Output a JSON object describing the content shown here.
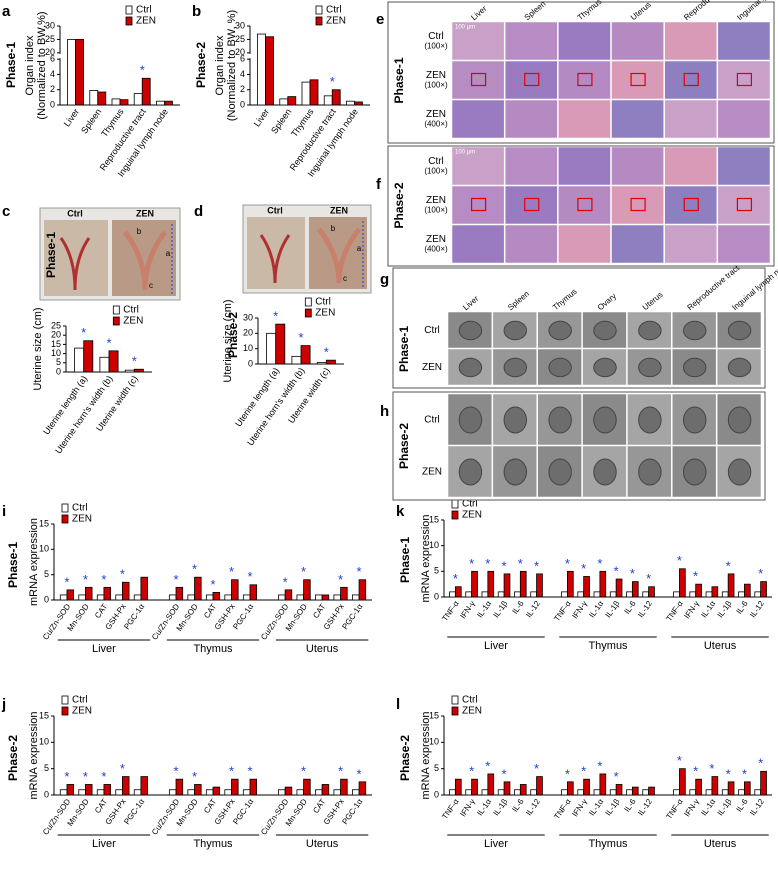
{
  "chart_data": [
    {
      "type": "bar",
      "panel": "a",
      "phase": "Phase-1",
      "ylabel": [
        "Organ index",
        "(Normalized to BW,%)"
      ],
      "categories": [
        "Liver",
        "Spleen",
        "Thymus",
        "Reproductive tract",
        "Inguinal lymph node"
      ],
      "series": [
        {
          "name": "Ctrl",
          "color": "#ffffff",
          "values": [
            25,
            1.9,
            0.8,
            1.5,
            0.5
          ]
        },
        {
          "name": "ZEN",
          "color": "#cc0000",
          "values": [
            25,
            1.7,
            0.7,
            3.5,
            0.5
          ]
        }
      ],
      "ylim": [
        0,
        30
      ],
      "axis_break": [
        6,
        20
      ],
      "yticks": [
        0,
        2,
        4,
        6,
        20,
        25,
        30
      ],
      "sig": [
        false,
        false,
        false,
        true,
        false
      ],
      "sig_label": "*",
      "legend": "upper right"
    },
    {
      "type": "bar",
      "panel": "b",
      "phase": "Phase-2",
      "ylabel": [
        "Organ index",
        "(Normalized to BW, %)"
      ],
      "categories": [
        "Liver",
        "Spleen",
        "Thymus",
        "Reproductive tract",
        "Inguinal lymph node"
      ],
      "series": [
        {
          "name": "Ctrl",
          "color": "#ffffff",
          "values": [
            27,
            0.8,
            3,
            1.2,
            0.5
          ]
        },
        {
          "name": "ZEN",
          "color": "#cc0000",
          "values": [
            26,
            1.1,
            3.3,
            2,
            0.4
          ]
        }
      ],
      "ylim": [
        0,
        30
      ],
      "axis_break": [
        6,
        20
      ],
      "yticks": [
        0,
        2,
        4,
        6,
        20,
        25,
        30
      ],
      "sig": [
        false,
        false,
        false,
        true,
        false
      ],
      "sig_label": "*",
      "legend": "upper right"
    },
    {
      "type": "bar",
      "panel": "c",
      "phase": "Phase-1",
      "ylabel": [
        "Uterine size (cm)"
      ],
      "categories": [
        "Uterine length (a)",
        "Uterine horn's width (b)",
        "Uterine width (c)"
      ],
      "series": [
        {
          "name": "Ctrl",
          "color": "#ffffff",
          "values": [
            13,
            8,
            1
          ]
        },
        {
          "name": "ZEN",
          "color": "#cc0000",
          "values": [
            17,
            11.5,
            1.5
          ]
        }
      ],
      "ylim": [
        0,
        25
      ],
      "yticks": [
        0,
        5,
        10,
        15,
        20,
        25
      ],
      "sig": [
        true,
        true,
        true
      ],
      "sig_label": "*",
      "legend": "upper right",
      "photo": {
        "left": "Ctrl",
        "right": "ZEN",
        "marks": [
          "b",
          "a",
          "c"
        ]
      }
    },
    {
      "type": "bar",
      "panel": "d",
      "phase": "Phase-2",
      "ylabel": [
        "Uterine size (cm)"
      ],
      "categories": [
        "Uterine length (a)",
        "Uterine horn's width (b)",
        "Uterine width (c)"
      ],
      "series": [
        {
          "name": "Ctrl",
          "color": "#ffffff",
          "values": [
            20,
            5,
            1
          ]
        },
        {
          "name": "ZEN",
          "color": "#cc0000",
          "values": [
            26,
            12,
            2.5
          ]
        }
      ],
      "ylim": [
        0,
        30
      ],
      "yticks": [
        0,
        10,
        20,
        30
      ],
      "sig": [
        true,
        true,
        true
      ],
      "sig_label": "*",
      "legend": "upper right",
      "photo": {
        "left": "Ctrl",
        "right": "ZEN",
        "marks": [
          "b",
          "a",
          "c"
        ]
      }
    },
    {
      "type": "bar",
      "panel": "i",
      "phase": "Phase-1",
      "ylabel": [
        "mRNA expression"
      ],
      "groups": [
        "Liver",
        "Thymus",
        "Uterus"
      ],
      "categories": [
        "Cu/Zn-SOD",
        "Mn-SOD",
        "CAT",
        "GSH-Px",
        "PGC-1α",
        "Cu/Zn-SOD",
        "Mn-SOD",
        "CAT",
        "GSH-Px",
        "PGC-1α",
        "Cu/Zn-SOD",
        "Mn-SOD",
        "CAT",
        "GSH-Px",
        "PGC-1α"
      ],
      "series": [
        {
          "name": "Ctrl",
          "color": "#ffffff",
          "values": [
            1,
            1,
            1,
            1,
            1,
            1,
            1,
            1,
            1,
            1,
            1,
            1,
            1,
            1,
            1
          ]
        },
        {
          "name": "ZEN",
          "color": "#cc0000",
          "values": [
            2,
            2.5,
            2.5,
            3.5,
            4.5,
            2.5,
            4.5,
            1.5,
            4,
            3,
            2,
            4,
            1,
            2.5,
            4
          ]
        }
      ],
      "ylim": [
        0,
        15
      ],
      "yticks": [
        0,
        5,
        10,
        15
      ],
      "sig": [
        true,
        true,
        true,
        true,
        false,
        true,
        true,
        true,
        true,
        true,
        true,
        true,
        false,
        true,
        true
      ],
      "sig_label": "*",
      "legend": "upper left"
    },
    {
      "type": "bar",
      "panel": "j",
      "phase": "Phase-2",
      "ylabel": [
        "mRNA expression"
      ],
      "groups": [
        "Liver",
        "Thymus",
        "Uterus"
      ],
      "categories": [
        "Cu/Zn-SOD",
        "Mn-SOD",
        "CAT",
        "GSH-Px",
        "PGC-1α",
        "Cu/Zn-SOD",
        "Mn-SOD",
        "CAT",
        "GSH-Px",
        "PGC-1α",
        "Cu/Zn-SOD",
        "Mn-SOD",
        "CAT",
        "GSH-Px",
        "PGC-1α"
      ],
      "series": [
        {
          "name": "Ctrl",
          "color": "#ffffff",
          "values": [
            1,
            1,
            1,
            1,
            1,
            1,
            1,
            1,
            1,
            1,
            1,
            1,
            1,
            1,
            1
          ]
        },
        {
          "name": "ZEN",
          "color": "#cc0000",
          "values": [
            2,
            2,
            2,
            3.5,
            3.5,
            3,
            2,
            1.5,
            3,
            3,
            1.5,
            3,
            2,
            3,
            2.5
          ]
        }
      ],
      "ylim": [
        0,
        15
      ],
      "yticks": [
        0,
        5,
        10,
        15
      ],
      "sig": [
        true,
        true,
        true,
        true,
        false,
        true,
        true,
        false,
        true,
        true,
        false,
        true,
        false,
        true,
        true
      ],
      "sig_label": "*",
      "legend": "upper left"
    },
    {
      "type": "bar",
      "panel": "k",
      "phase": "Phase-1",
      "ylabel": [
        "mRNA expression"
      ],
      "groups": [
        "Liver",
        "Thymus",
        "Uterus"
      ],
      "categories": [
        "TNF-α",
        "IFN-γ",
        "IL-1α",
        "IL-1β",
        "IL-6",
        "IL-12",
        "TNF-α",
        "IFN-γ",
        "IL-1α",
        "IL-1β",
        "IL-6",
        "IL-12",
        "TNF-α",
        "IFN-γ",
        "IL-1α",
        "IL-1β",
        "IL-6",
        "IL-12"
      ],
      "series": [
        {
          "name": "Ctrl",
          "color": "#ffffff",
          "values": [
            1,
            1,
            1,
            1,
            1,
            1,
            1,
            1,
            1,
            1,
            1,
            1,
            1,
            1,
            1,
            1,
            1,
            1
          ]
        },
        {
          "name": "ZEN",
          "color": "#cc0000",
          "values": [
            2,
            5,
            5,
            4.5,
            5,
            4.5,
            5,
            4,
            5,
            3.5,
            3,
            2,
            5.5,
            2.5,
            2,
            4.5,
            2.5,
            3
          ]
        }
      ],
      "ylim": [
        0,
        15
      ],
      "yticks": [
        0,
        5,
        10,
        15
      ],
      "sig": [
        true,
        true,
        true,
        true,
        true,
        true,
        true,
        true,
        true,
        true,
        true,
        true,
        true,
        true,
        false,
        true,
        false,
        true
      ],
      "sig_label": "*",
      "legend": "upper left"
    },
    {
      "type": "bar",
      "panel": "l",
      "phase": "Phase-2",
      "ylabel": [
        "mRNA expression"
      ],
      "groups": [
        "Liver",
        "Thymus",
        "Uterus"
      ],
      "categories": [
        "TNF-α",
        "IFN-γ",
        "IL-1α",
        "IL-1β",
        "IL-6",
        "IL-12",
        "TNF-α",
        "IFN-γ",
        "IL-1α",
        "IL-1β",
        "IL-6",
        "IL-12",
        "TNF-α",
        "IFN-γ",
        "IL-1α",
        "IL-1β",
        "IL-6",
        "IL-12"
      ],
      "series": [
        {
          "name": "Ctrl",
          "color": "#ffffff",
          "values": [
            1,
            1,
            1,
            1,
            1,
            1,
            1,
            1,
            1,
            1,
            1,
            1,
            1,
            1,
            1,
            1,
            1,
            1
          ]
        },
        {
          "name": "ZEN",
          "color": "#cc0000",
          "values": [
            3,
            3,
            4,
            2.5,
            2,
            3.5,
            2.5,
            3,
            4,
            2,
            1.5,
            1.5,
            5,
            3,
            3.5,
            2.5,
            2.5,
            4.5
          ]
        }
      ],
      "ylim": [
        0,
        15
      ],
      "yticks": [
        0,
        5,
        10,
        15
      ],
      "sig": [
        false,
        true,
        true,
        true,
        false,
        true,
        true,
        true,
        true,
        true,
        false,
        false,
        true,
        true,
        true,
        true,
        true,
        true
      ],
      "sig_label": "*",
      "legend": "upper left"
    }
  ],
  "image_panels": [
    {
      "panel": "e",
      "phase": "Phase-1",
      "columns": [
        "Liver",
        "Spleen",
        "Thymus",
        "Uterus",
        "Reproductive tract",
        "Inguinal lymph node"
      ],
      "rows": [
        [
          "Ctrl",
          "(100×)"
        ],
        [
          "ZEN",
          "(100×)"
        ],
        [
          "ZEN",
          "(400×)"
        ]
      ],
      "scale_bar": "100 μm"
    },
    {
      "panel": "f",
      "phase": "Phase-2",
      "rows": [
        [
          "Ctrl",
          "(100×)"
        ],
        [
          "ZEN",
          "(100×)"
        ],
        [
          "ZEN",
          "(400×)"
        ]
      ],
      "scale_bar": "100 μm"
    },
    {
      "panel": "g",
      "phase": "Phase-1",
      "columns": [
        "Liver",
        "Spleen",
        "Thymus",
        "Ovary",
        "Uterus",
        "Reproductive tract",
        "Inguinal lymph node"
      ],
      "rows": [
        [
          "Ctrl"
        ],
        [
          "ZEN"
        ]
      ]
    },
    {
      "panel": "h",
      "phase": "Phase-2",
      "rows": [
        [
          "Ctrl"
        ],
        [
          "ZEN"
        ]
      ]
    }
  ]
}
